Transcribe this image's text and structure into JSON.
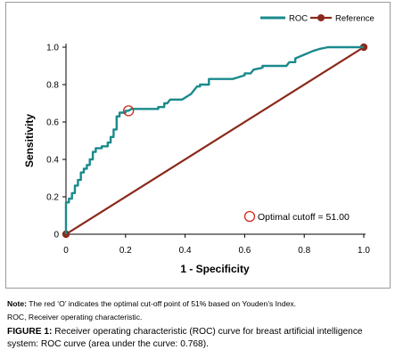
{
  "chart_data": {
    "type": "line",
    "xlabel": "1 - Specificity",
    "ylabel": "Sensitivity",
    "xlim": [
      0,
      1
    ],
    "ylim": [
      0,
      1
    ],
    "x_ticks": [
      "0",
      "0.2",
      "0.4",
      "0.6",
      "0.8",
      "1.0"
    ],
    "y_ticks": [
      "0",
      "0.2",
      "0.4",
      "0.6",
      "0.8",
      "1.0"
    ],
    "grid": false,
    "legend_placement": "top-right",
    "series": [
      {
        "name": "ROC",
        "color": "#1a8a8c",
        "points": [
          [
            0,
            0
          ],
          [
            0,
            0.17
          ],
          [
            0.01,
            0.17
          ],
          [
            0.01,
            0.19
          ],
          [
            0.02,
            0.19
          ],
          [
            0.02,
            0.22
          ],
          [
            0.03,
            0.22
          ],
          [
            0.03,
            0.26
          ],
          [
            0.04,
            0.26
          ],
          [
            0.04,
            0.29
          ],
          [
            0.05,
            0.29
          ],
          [
            0.05,
            0.33
          ],
          [
            0.06,
            0.33
          ],
          [
            0.06,
            0.35
          ],
          [
            0.07,
            0.35
          ],
          [
            0.07,
            0.37
          ],
          [
            0.08,
            0.37
          ],
          [
            0.08,
            0.4
          ],
          [
            0.09,
            0.4
          ],
          [
            0.09,
            0.44
          ],
          [
            0.1,
            0.44
          ],
          [
            0.1,
            0.46
          ],
          [
            0.12,
            0.46
          ],
          [
            0.12,
            0.47
          ],
          [
            0.14,
            0.47
          ],
          [
            0.14,
            0.49
          ],
          [
            0.15,
            0.49
          ],
          [
            0.15,
            0.52
          ],
          [
            0.16,
            0.52
          ],
          [
            0.16,
            0.56
          ],
          [
            0.17,
            0.56
          ],
          [
            0.17,
            0.63
          ],
          [
            0.18,
            0.63
          ],
          [
            0.18,
            0.65
          ],
          [
            0.2,
            0.65
          ],
          [
            0.2,
            0.66
          ],
          [
            0.21,
            0.66
          ],
          [
            0.22,
            0.67
          ],
          [
            0.31,
            0.67
          ],
          [
            0.31,
            0.68
          ],
          [
            0.33,
            0.68
          ],
          [
            0.33,
            0.7
          ],
          [
            0.34,
            0.7
          ],
          [
            0.35,
            0.72
          ],
          [
            0.39,
            0.72
          ],
          [
            0.41,
            0.74
          ],
          [
            0.42,
            0.75
          ],
          [
            0.43,
            0.77
          ],
          [
            0.44,
            0.79
          ],
          [
            0.45,
            0.79
          ],
          [
            0.45,
            0.8
          ],
          [
            0.48,
            0.8
          ],
          [
            0.48,
            0.83
          ],
          [
            0.56,
            0.83
          ],
          [
            0.58,
            0.84
          ],
          [
            0.6,
            0.85
          ],
          [
            0.6,
            0.86
          ],
          [
            0.62,
            0.86
          ],
          [
            0.63,
            0.88
          ],
          [
            0.66,
            0.89
          ],
          [
            0.66,
            0.9
          ],
          [
            0.74,
            0.9
          ],
          [
            0.75,
            0.92
          ],
          [
            0.77,
            0.92
          ],
          [
            0.77,
            0.94
          ],
          [
            0.8,
            0.96
          ],
          [
            0.83,
            0.98
          ],
          [
            0.85,
            0.99
          ],
          [
            0.88,
            1.0
          ],
          [
            1.0,
            1.0
          ]
        ]
      },
      {
        "name": "Reference",
        "color": "#8b2a1c",
        "points": [
          [
            0,
            0
          ],
          [
            1,
            1
          ]
        ]
      }
    ],
    "optimal_point": {
      "x": 0.21,
      "y": 0.66,
      "color": "#cc2a1f"
    },
    "annotation": "Optimal cutoff = 51.00"
  },
  "notes": {
    "note_label": "Note:",
    "note_text": " The red ‘O’ indicates the optimal cut-off point of 51% based on Youden’s Index.",
    "abbrev": "ROC, Receiver operating characteristic."
  },
  "caption": {
    "label": "FIGURE 1:",
    "text": " Receiver operating characteristic (ROC) curve for breast artificial intelligence system: ROC curve (area under the curve: 0.768)."
  }
}
